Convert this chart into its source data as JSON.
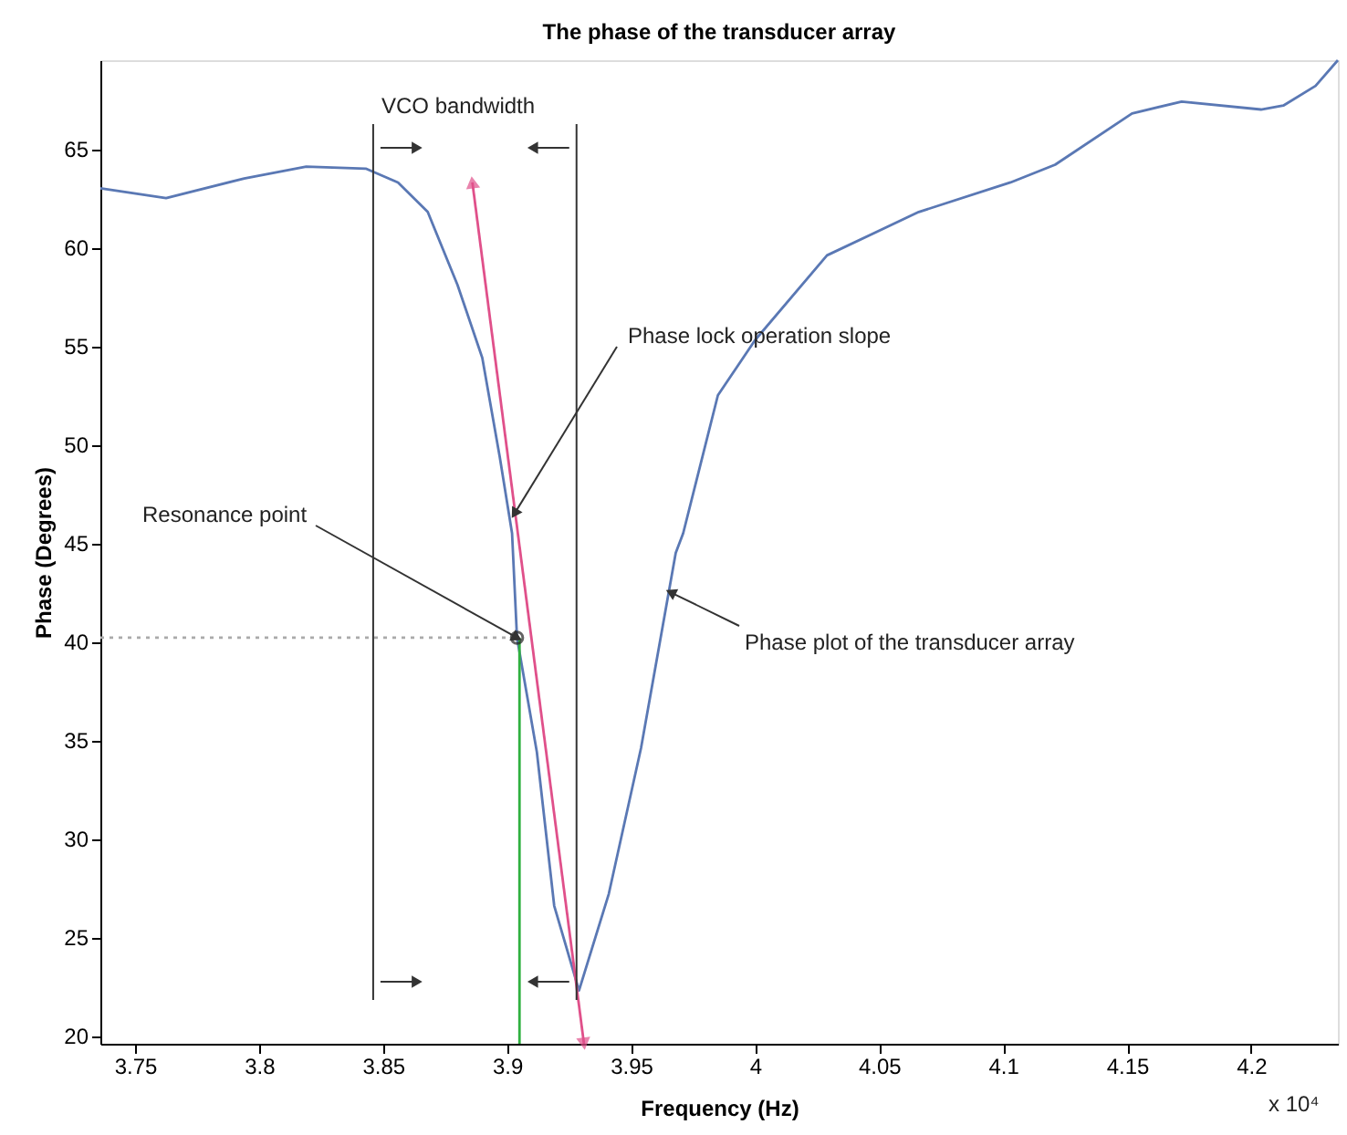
{
  "chart_data": {
    "type": "line",
    "title": "The phase of the transducer array",
    "xlabel": "Frequency (Hz)",
    "ylabel": "Phase (Degrees)",
    "xlim": [
      3.736,
      4.235
    ],
    "ylim": [
      19.6,
      69.5
    ],
    "xticks": [
      3.75,
      3.8,
      3.85,
      3.9,
      3.95,
      4,
      4.05,
      4.1,
      4.15,
      4.2
    ],
    "yticks": [
      20,
      25,
      30,
      35,
      40,
      45,
      50,
      55,
      60,
      65
    ],
    "grid": false,
    "series": [
      {
        "color": "#5a78b4",
        "x": [
          3.736,
          3.7625,
          3.794,
          3.819,
          3.843,
          3.856,
          3.868,
          3.88,
          3.89,
          3.897,
          3.902,
          3.904,
          3.912,
          3.919,
          3.929,
          3.941,
          3.954,
          3.968,
          3.971,
          3.985,
          4.0,
          4.029,
          4.066,
          4.103,
          4.121,
          4.152,
          4.172,
          4.204,
          4.213,
          4.226,
          4.235
        ],
        "values": [
          63.0,
          62.5,
          63.5,
          64.1,
          64.0,
          63.3,
          61.8,
          58.1,
          54.4,
          49.4,
          45.5,
          40.2,
          34.4,
          26.6,
          22.3,
          27.2,
          34.6,
          44.5,
          45.5,
          52.5,
          55.3,
          59.6,
          61.8,
          63.3,
          64.2,
          66.8,
          67.4,
          67.0,
          67.2,
          68.2,
          69.5
        ]
      },
      {
        "color": "#e0508a",
        "marker": "triangle",
        "x": [
          3.886,
          3.931
        ],
        "values": [
          63.3,
          19.6
        ]
      },
      {
        "color": "#30b040",
        "x": [
          3.905,
          3.905
        ],
        "values": [
          19.6,
          40.2
        ]
      },
      {
        "color": "#aaaaaa",
        "line_style": "dotted",
        "x": [
          3.736,
          3.904
        ],
        "values": [
          40.2,
          40.2
        ]
      },
      {
        "type": "scatter",
        "color": "#222222",
        "marker": "circle",
        "x": [
          3.904
        ],
        "values": [
          40.2
        ]
      }
    ],
    "ref_lines": [
      {
        "axis": "x",
        "value": 3.846,
        "color": "#333333"
      },
      {
        "axis": "x",
        "value": 3.928,
        "color": "#333333"
      }
    ],
    "annotations": [
      {
        "text": "Phase lock operation slope",
        "x": 3.903,
        "y": 46.5
      },
      {
        "text": "Resonance point",
        "x": 3.904,
        "y": 40.2
      },
      {
        "text": "Phase plot of the transducer array",
        "x": 3.966,
        "y": 42.5
      },
      "VCO bandwidth",
      "x 10⁴"
    ]
  }
}
